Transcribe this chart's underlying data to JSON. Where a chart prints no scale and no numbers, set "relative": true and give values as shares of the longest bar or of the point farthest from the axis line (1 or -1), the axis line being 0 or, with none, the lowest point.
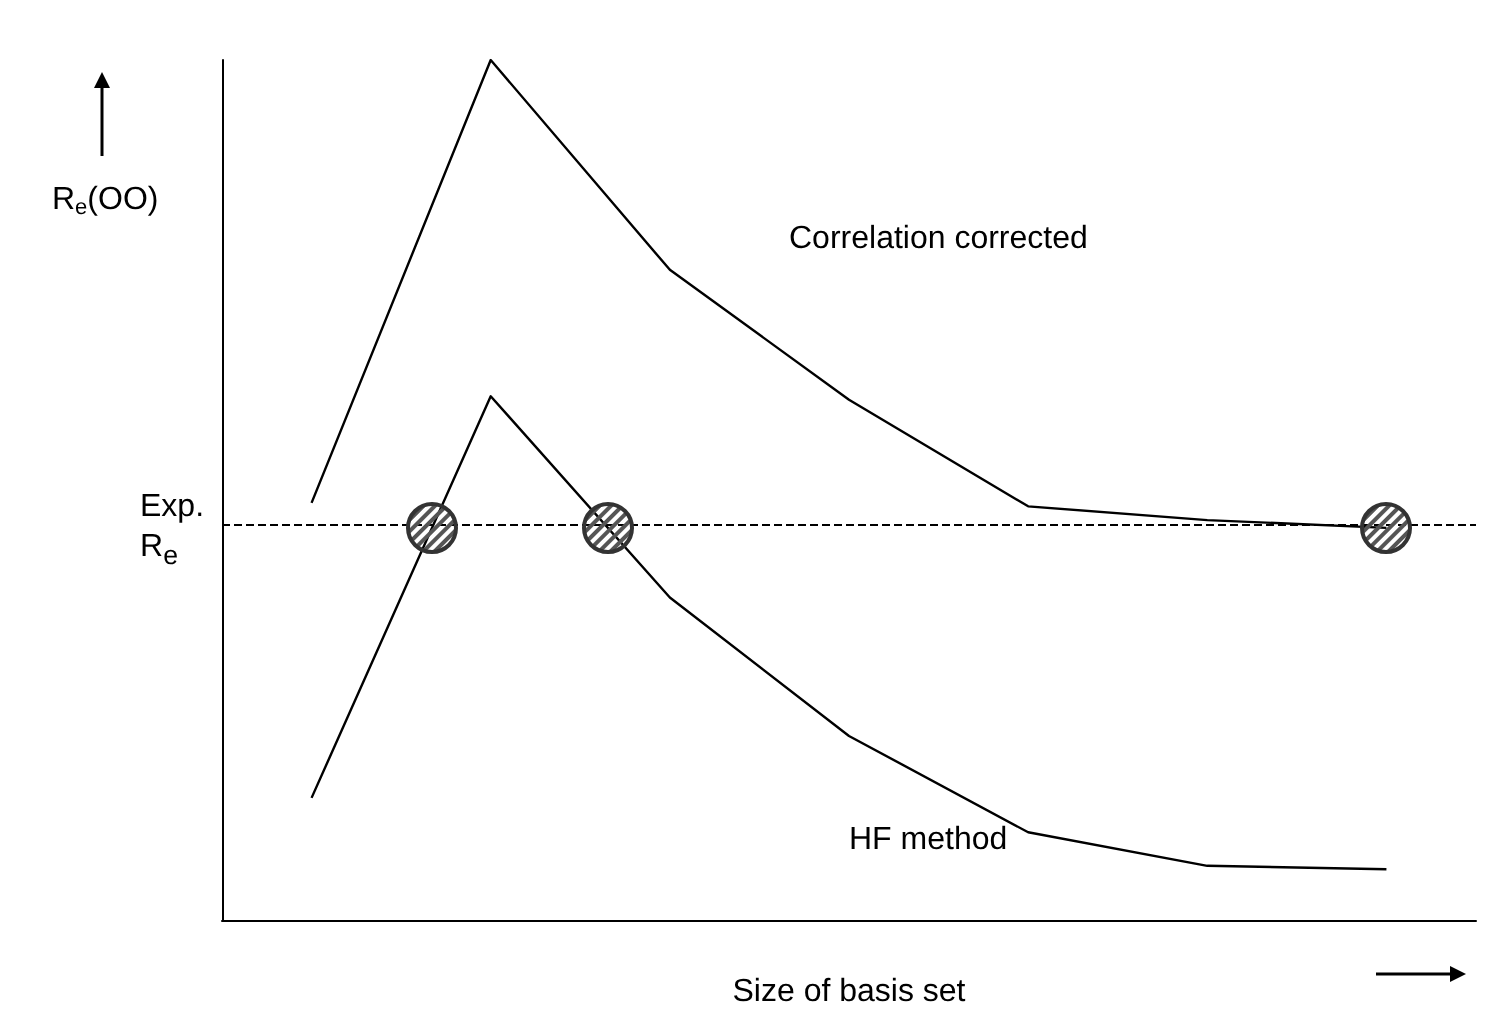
{
  "chart_data": {
    "type": "line",
    "relative": true,
    "xlabel": "Size of basis set",
    "ylabel": "R$_{e}$(OO)",
    "categories": [
      null,
      null,
      null,
      null,
      null,
      null,
      null
    ],
    "series": [
      {
        "name": "Correlation corrected",
        "color": "#000000",
        "values": [
          0.485,
          1,
          0.756,
          0.605,
          0.481,
          0.465,
          0.456
        ]
      },
      {
        "name": "HF method",
        "color": "#000000",
        "values": [
          0.142,
          0.609,
          0.375,
          0.214,
          0.102,
          0.063,
          0.059
        ]
      }
    ],
    "ref_lines": [
      {
        "axis": "y",
        "value": 0.456,
        "label": "Exp.\nR$_{e}$",
        "line_style": "dashed",
        "color": "#000000"
      }
    ],
    "grid": false,
    "legend": false,
    "marker": "none",
    "line_style": "solid"
  }
}
